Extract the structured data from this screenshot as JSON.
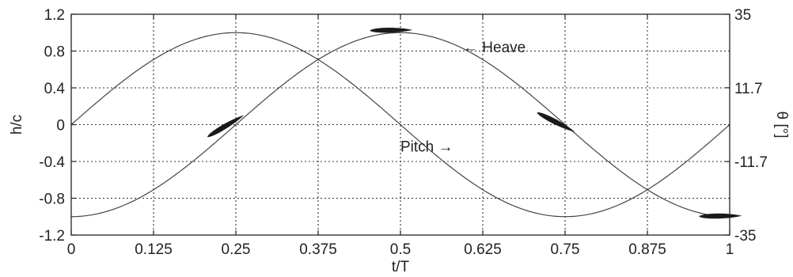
{
  "chart_data": {
    "type": "line",
    "xlabel": "t/T",
    "ylabel_left": "h/c",
    "ylabel_right": "θ [°]",
    "xlim": [
      0,
      1
    ],
    "ylim_left": [
      -1.2,
      1.2
    ],
    "ylim_right": [
      -35,
      35
    ],
    "x_ticks": [
      "0",
      "0.125",
      "0.25",
      "0.375",
      "0.5",
      "0.625",
      "0.75",
      "0.875",
      "1"
    ],
    "y_ticks_left": [
      "-1.2",
      "-0.8",
      "-0.4",
      "0",
      "0.4",
      "0.8",
      "1.2"
    ],
    "y_ticks_right": [
      "-35",
      "-11.7",
      "11.7",
      "35"
    ],
    "grid": true,
    "series": [
      {
        "name": "Heave",
        "axis": "left",
        "x": [
          0,
          0.0625,
          0.125,
          0.1875,
          0.25,
          0.3125,
          0.375,
          0.4375,
          0.5,
          0.5625,
          0.625,
          0.6875,
          0.75,
          0.8125,
          0.875,
          0.9375,
          1
        ],
        "values": [
          -1.0,
          -0.924,
          -0.707,
          -0.383,
          0.0,
          0.383,
          0.707,
          0.924,
          1.0,
          0.924,
          0.707,
          0.383,
          0.0,
          -0.383,
          -0.707,
          -0.924,
          -1.0
        ]
      },
      {
        "name": "Pitch",
        "axis": "left",
        "x": [
          0,
          0.0625,
          0.125,
          0.1875,
          0.25,
          0.3125,
          0.375,
          0.4375,
          0.5,
          0.5625,
          0.625,
          0.6875,
          0.75,
          0.8125,
          0.875,
          0.9375,
          1
        ],
        "values": [
          0.0,
          0.383,
          0.707,
          0.924,
          1.0,
          0.924,
          0.707,
          0.383,
          0.0,
          -0.383,
          -0.707,
          -0.924,
          -1.0,
          -0.924,
          -0.707,
          -0.383,
          0.0
        ]
      }
    ],
    "annotations": [
      {
        "text": "Heave",
        "arrow": "←",
        "x": 0.595,
        "y": 0.84
      },
      {
        "text": "Pitch",
        "arrow": "→",
        "x": 0.5,
        "y": -0.24
      }
    ],
    "airfoils": [
      {
        "x": 0.235,
        "y": -0.02,
        "angle_deg": -30
      },
      {
        "x": 0.486,
        "y": 1.02,
        "angle_deg": 0
      },
      {
        "x": 0.736,
        "y": 0.02,
        "angle_deg": 28
      },
      {
        "x": 0.986,
        "y": -1.0,
        "angle_deg": 0
      }
    ]
  }
}
